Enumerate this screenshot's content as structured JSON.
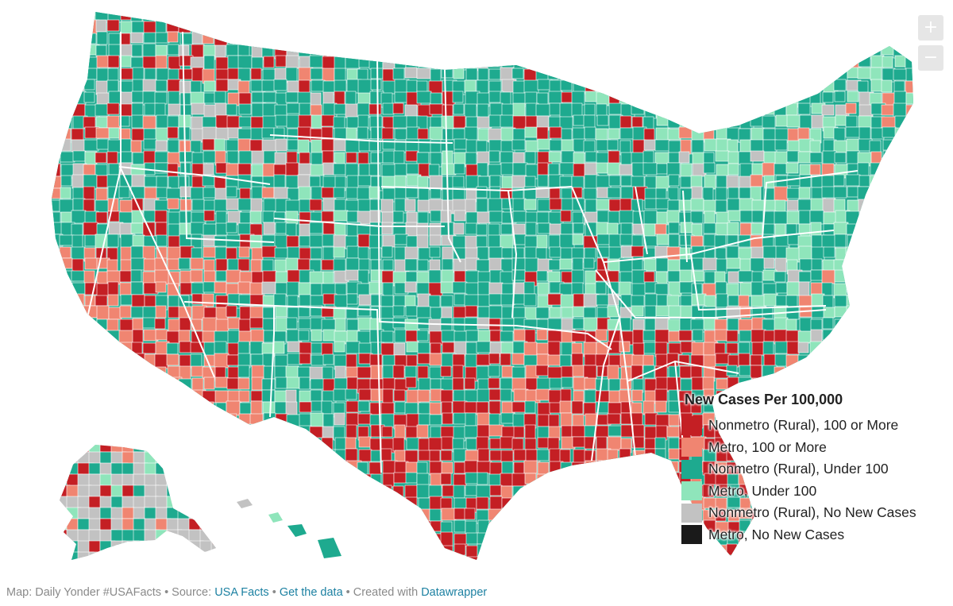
{
  "legend": {
    "title": "New Cases Per 100,000",
    "items": [
      {
        "label": "Nonmetro (Rural), 100 or More",
        "color": "#c41f24"
      },
      {
        "label": "Metro, 100 or More",
        "color": "#f08571"
      },
      {
        "label": "Nonmetro (Rural), Under 100",
        "color": "#1eaa8f"
      },
      {
        "label": "Metro, Under 100",
        "color": "#8fe5bb"
      },
      {
        "label": "Nonmetro (Rural), No New Cases",
        "color": "#c2c2c2"
      },
      {
        "label": "Metro, No New Cases",
        "color": "#1a1a1a"
      }
    ]
  },
  "zoom": {
    "in_label": "+",
    "out_label": "−"
  },
  "footer": {
    "map_credit": "Map: Daily Yonder #USAFacts",
    "sep1": " • Source: ",
    "source_link": "USA Facts",
    "sep2": " • ",
    "data_link": "Get the data",
    "sep3": " • Created with ",
    "tool_link": "Datawrapper"
  }
}
